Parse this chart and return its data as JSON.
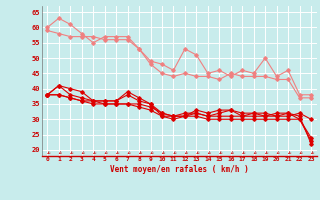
{
  "xlabel": "Vent moyen/en rafales ( km/h )",
  "xlim": [
    -0.5,
    23.5
  ],
  "ylim": [
    18,
    67
  ],
  "yticks": [
    20,
    25,
    30,
    35,
    40,
    45,
    50,
    55,
    60,
    65
  ],
  "xticks": [
    0,
    1,
    2,
    3,
    4,
    5,
    6,
    7,
    8,
    9,
    10,
    11,
    12,
    13,
    14,
    15,
    16,
    17,
    18,
    19,
    20,
    21,
    22,
    23
  ],
  "background_color": "#c8ecec",
  "grid_color": "#aadddd",
  "line_color_light": "#f08080",
  "line_color_dark": "#dd0000",
  "series_light": [
    [
      60,
      63,
      61,
      58,
      55,
      57,
      57,
      57,
      53,
      49,
      48,
      46,
      53,
      51,
      45,
      46,
      44,
      46,
      45,
      50,
      44,
      46,
      38,
      38
    ],
    [
      59,
      58,
      57,
      57,
      57,
      56,
      56,
      56,
      53,
      48,
      45,
      44,
      45,
      44,
      44,
      43,
      45,
      44,
      44,
      44,
      43,
      43,
      37,
      37
    ]
  ],
  "series_dark": [
    [
      38,
      41,
      38,
      37,
      36,
      36,
      36,
      39,
      37,
      35,
      32,
      31,
      31,
      33,
      32,
      33,
      33,
      32,
      32,
      31,
      32,
      32,
      30,
      23
    ],
    [
      38,
      41,
      40,
      39,
      36,
      36,
      36,
      38,
      36,
      35,
      31,
      31,
      32,
      32,
      31,
      32,
      33,
      31,
      32,
      32,
      31,
      32,
      31,
      22
    ],
    [
      38,
      38,
      37,
      36,
      36,
      35,
      35,
      35,
      35,
      34,
      32,
      31,
      31,
      32,
      31,
      31,
      31,
      31,
      31,
      31,
      31,
      31,
      32,
      30
    ],
    [
      38,
      38,
      37,
      36,
      35,
      35,
      35,
      35,
      34,
      33,
      31,
      30,
      31,
      31,
      30,
      30,
      30,
      30,
      30,
      30,
      30,
      30,
      30,
      24
    ]
  ],
  "arrow_color": "#cc0000",
  "axis_line_color": "#cc0000"
}
